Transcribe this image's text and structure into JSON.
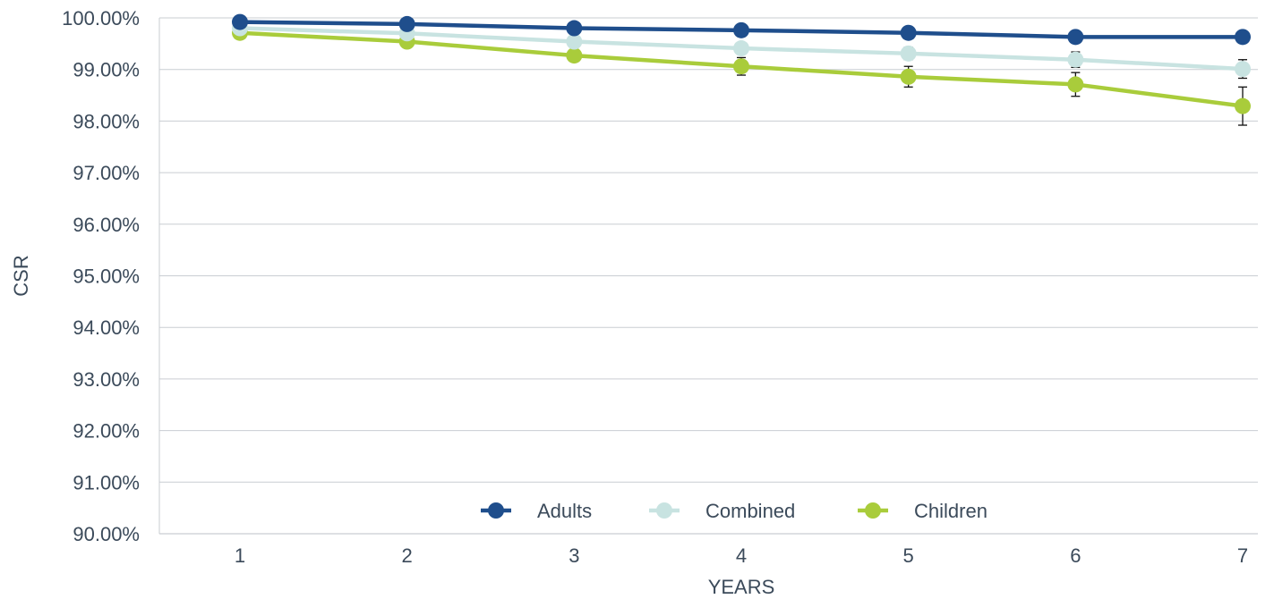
{
  "chart_data": {
    "type": "line",
    "x": [
      "1",
      "2",
      "3",
      "4",
      "5",
      "6",
      "7"
    ],
    "xlabel": "YEARS",
    "ylabel": "CSR",
    "ylim": [
      90,
      100
    ],
    "yticks": [
      "90.00%",
      "91.00%",
      "92.00%",
      "93.00%",
      "94.00%",
      "95.00%",
      "96.00%",
      "97.00%",
      "98.00%",
      "99.00%",
      "100.00%"
    ],
    "grid": "horizontal",
    "legend_position": "bottom-center",
    "series": [
      {
        "name": "Adults",
        "color": "#1f4e8c",
        "values": [
          99.92,
          99.88,
          99.8,
          99.76,
          99.71,
          99.63,
          99.63
        ]
      },
      {
        "name": "Combined",
        "color": "#c8e3e1",
        "values": [
          99.8,
          99.7,
          99.54,
          99.41,
          99.31,
          99.19,
          99.01
        ],
        "error": [
          0.03,
          0.04,
          0.07,
          0.1,
          0.12,
          0.15,
          0.18
        ]
      },
      {
        "name": "Children",
        "color": "#a9cc3b",
        "values": [
          99.71,
          99.54,
          99.27,
          99.06,
          98.86,
          98.71,
          98.29
        ],
        "error": [
          0.05,
          0.06,
          0.1,
          0.17,
          0.2,
          0.23,
          0.37
        ]
      }
    ]
  }
}
